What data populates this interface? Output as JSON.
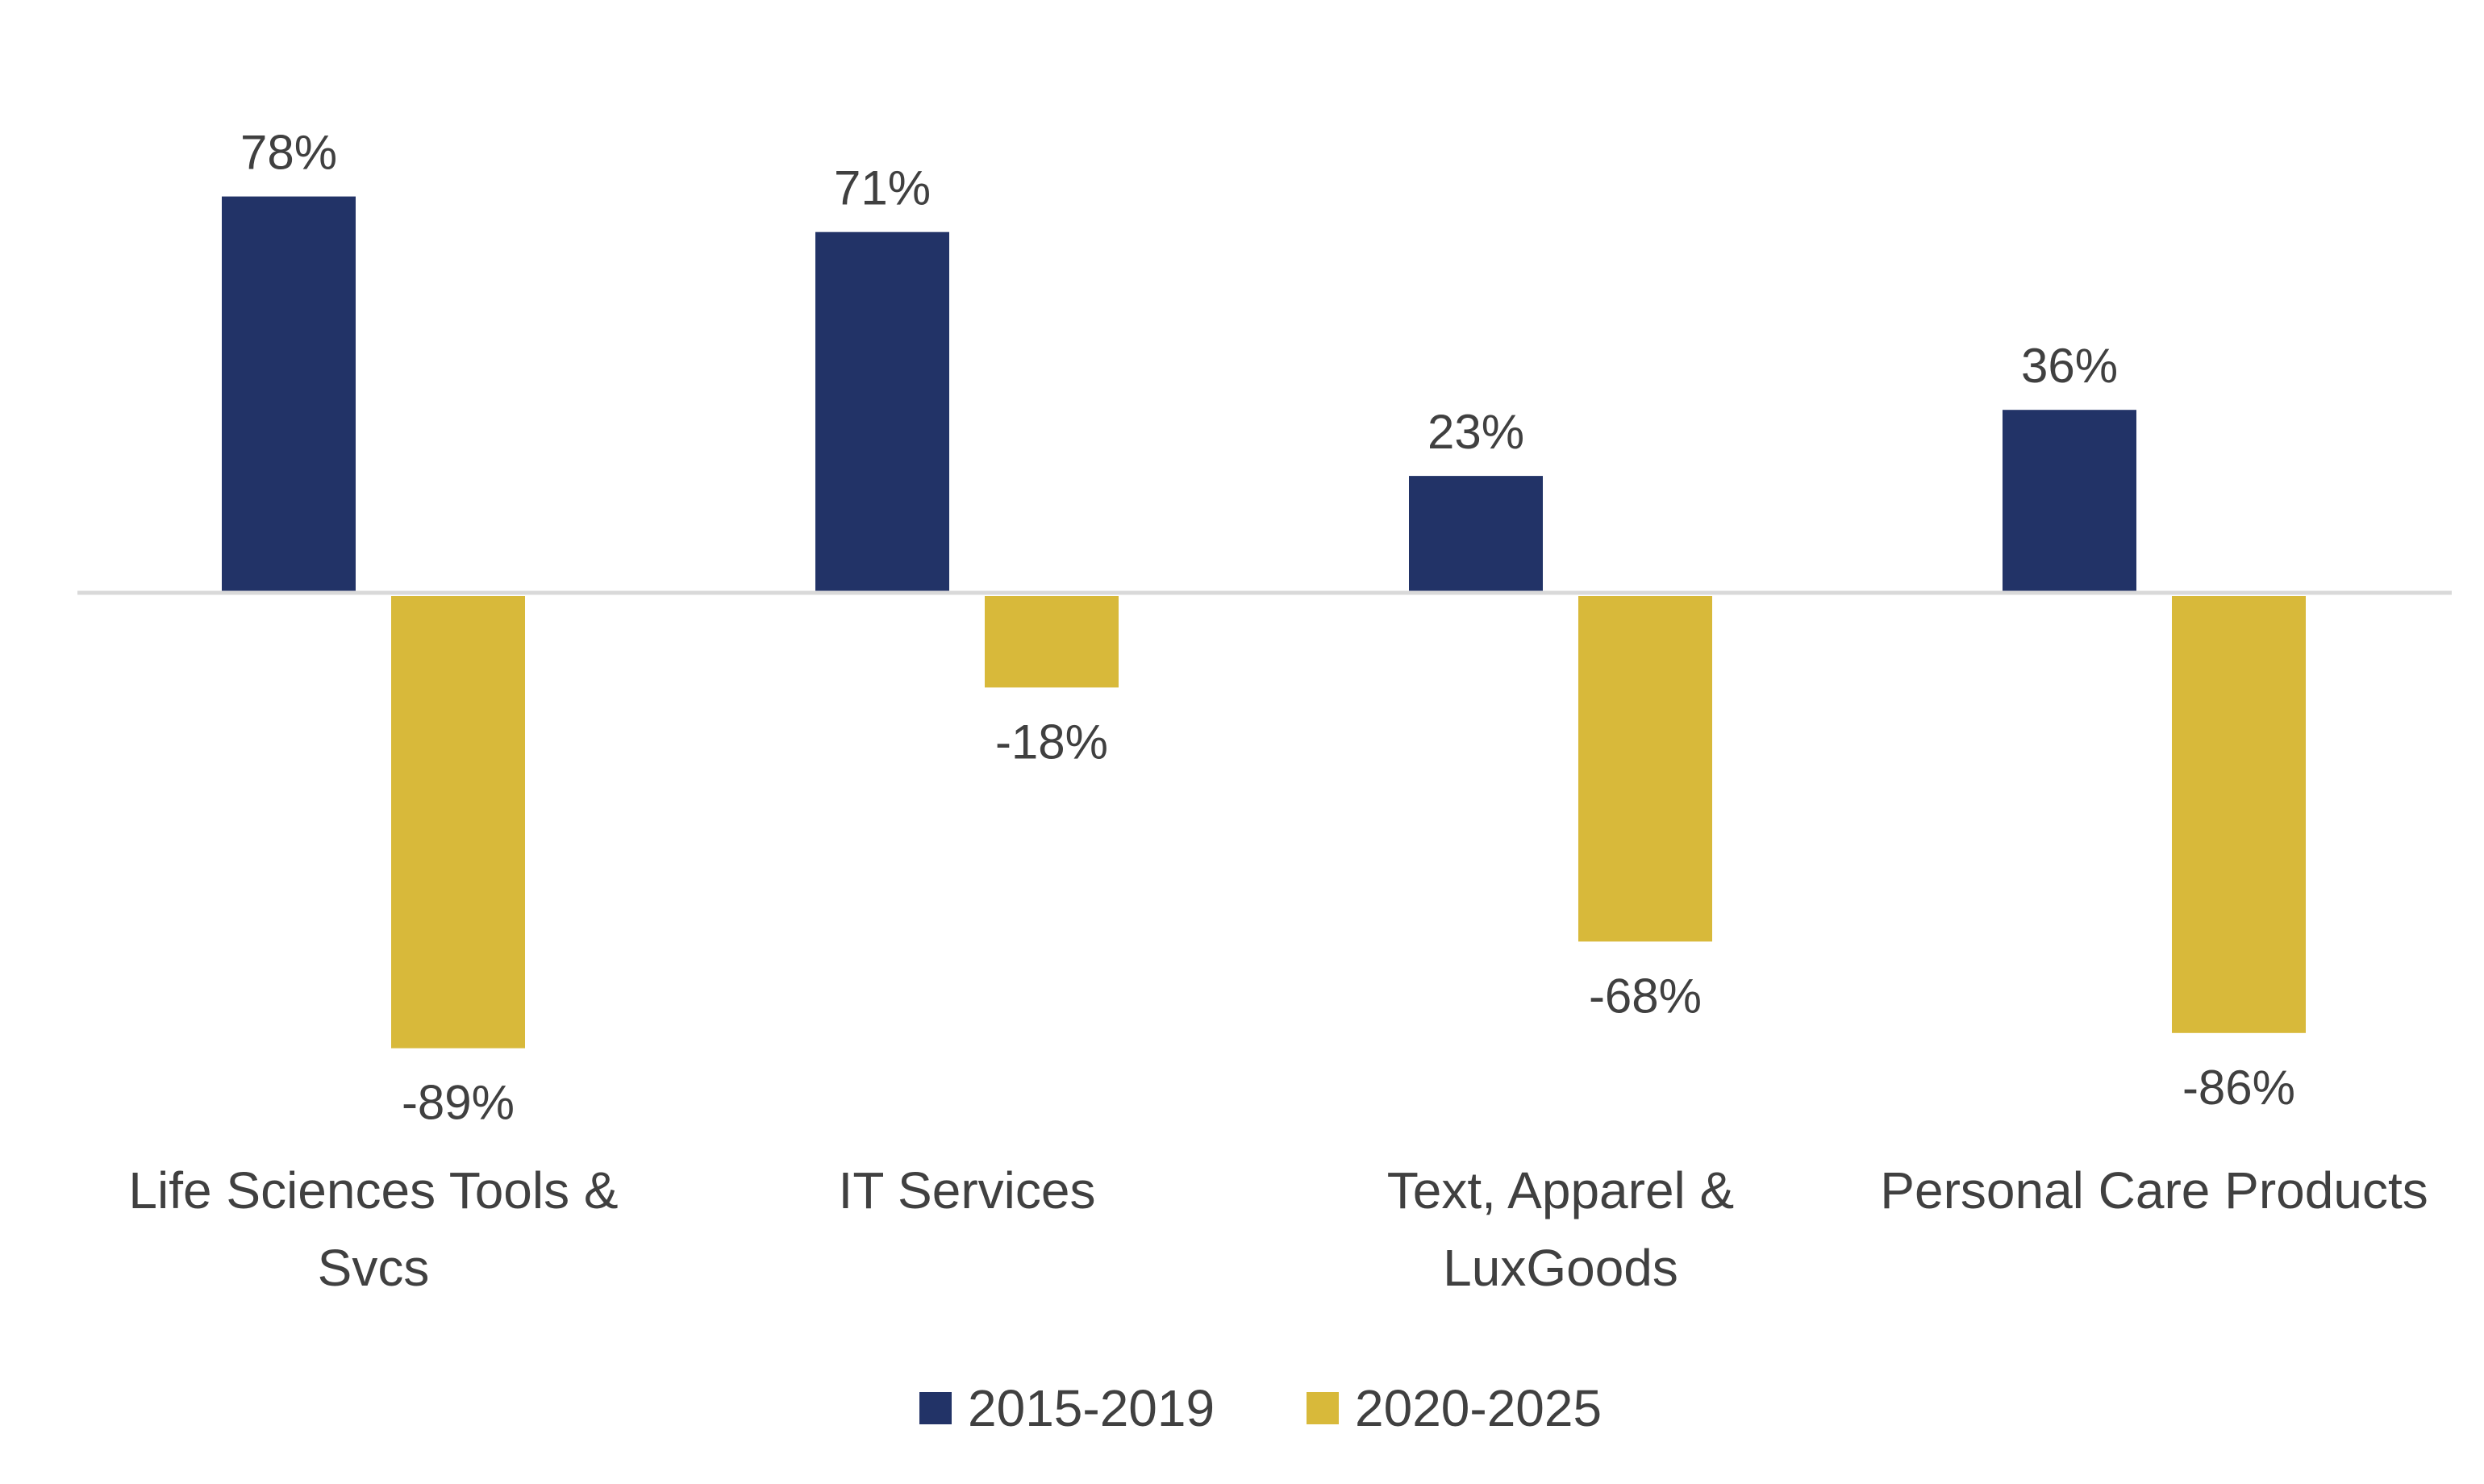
{
  "chart_data": {
    "type": "bar",
    "categories": [
      [
        "Life Sciences Tools &",
        "Svcs"
      ],
      [
        "IT Services"
      ],
      [
        "Text, Apparel &",
        "LuxGoods"
      ],
      [
        "Personal Care Products"
      ]
    ],
    "series": [
      {
        "name": "2015-2019",
        "color": "#223367",
        "values": [
          78,
          71,
          23,
          36
        ],
        "labels": [
          "78%",
          "71%",
          "23%",
          "36%"
        ]
      },
      {
        "name": "2020-2025",
        "color": "#D8B93A",
        "values": [
          -89,
          -18,
          -68,
          -86
        ],
        "labels": [
          "-89%",
          "-18%",
          "-68%",
          "-86%"
        ]
      }
    ],
    "value_format": "percent",
    "ylim": [
      -89,
      78
    ],
    "grid": false,
    "legend_position": "bottom",
    "title": "",
    "xlabel": "",
    "ylabel": ""
  }
}
